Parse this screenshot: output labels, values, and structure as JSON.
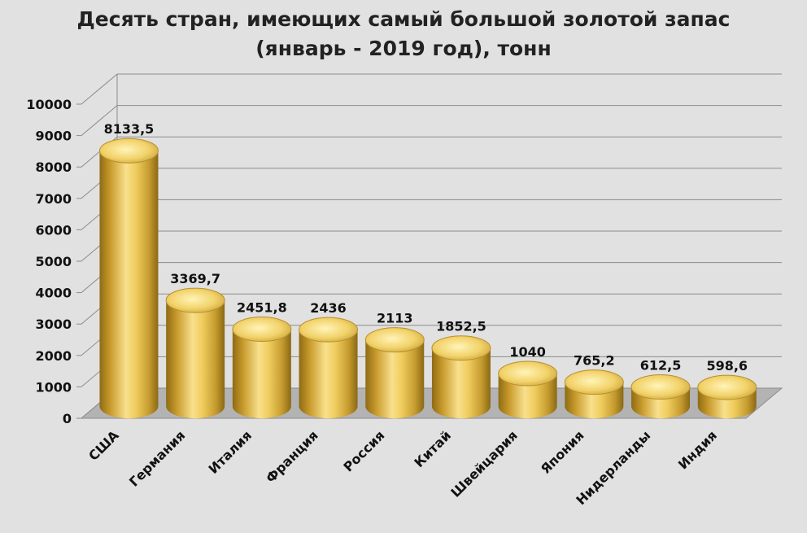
{
  "chart_data": {
    "type": "bar",
    "title": "Десять стран, имеющих самый большой золотой запас",
    "subtitle": "(январь  - 2019 год), тонн",
    "categories": [
      "США",
      "Германия",
      "Италия",
      "Франция",
      "Россия",
      "Китай",
      "Швейцария",
      "Япония",
      "Нидерланды",
      "Индия"
    ],
    "values": [
      8133.5,
      3369.7,
      2451.8,
      2436,
      2113,
      1852.5,
      1040,
      765.2,
      612.5,
      598.6
    ],
    "value_labels": [
      "8133,5",
      "3369,7",
      "2451,8",
      "2436",
      "2113",
      "1852,5",
      "1040",
      "765,2",
      "612,5",
      "598,6"
    ],
    "ylim": [
      0,
      10000
    ],
    "yticks": [
      0,
      1000,
      2000,
      3000,
      4000,
      5000,
      6000,
      7000,
      8000,
      9000,
      10000
    ],
    "xlabel": "",
    "ylabel": "",
    "grid": true,
    "legend": "none",
    "bar_color": "#e3bc4c",
    "bar_style": "3d-cylinder",
    "background": "#e1e1e1"
  }
}
